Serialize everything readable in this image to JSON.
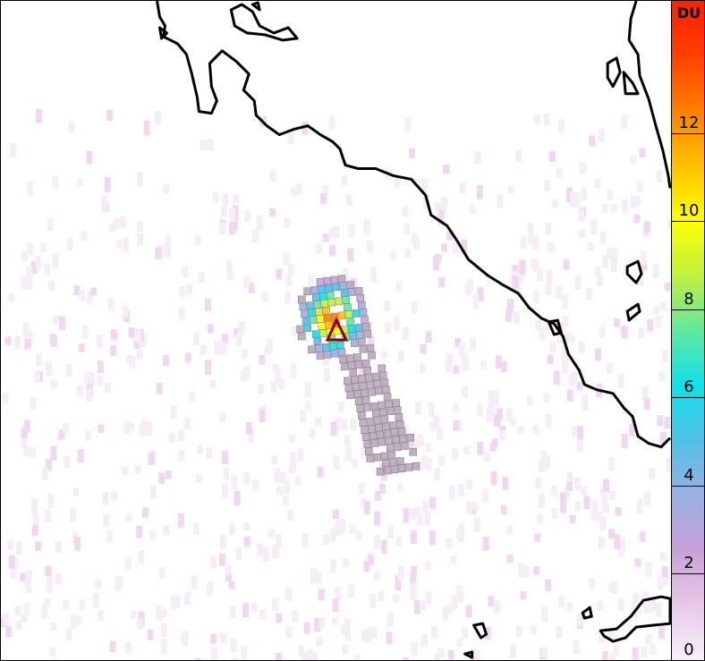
{
  "colorbar": {
    "unit": "DU",
    "range": [
      0,
      15
    ],
    "ticks": [
      "0",
      "2",
      "4",
      "6",
      "8",
      "10",
      "12"
    ],
    "colors": [
      "#f8f0f8",
      "#e8c8e8",
      "#c8a0d8",
      "#9ab0e0",
      "#50c0e8",
      "#10e0e8",
      "#60e8a0",
      "#c0f040",
      "#ffff00",
      "#ffc000",
      "#ff8000",
      "#ff4000",
      "#ff2000"
    ]
  },
  "map": {
    "volcano_marker_color": "#8b0000",
    "volcano_marker_icon": "triangle"
  }
}
